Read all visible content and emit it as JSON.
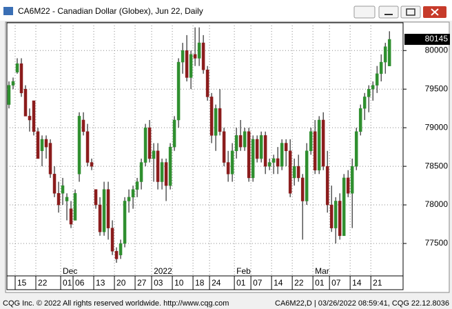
{
  "chart_data": {
    "type": "candlestick",
    "title": "CA6M22 - Canadian Dollar (Globex), Jun 22, Daily",
    "up_color": "#2f8f2f",
    "down_color": "#8b1c1c",
    "open": [
      79300,
      79550,
      79720,
      79830,
      79500,
      79150,
      79350,
      78950,
      78700,
      78850,
      78800,
      78400,
      78150,
      78150,
      78050,
      77950,
      77800,
      78400,
      79100,
      78950,
      78550,
      78200,
      78000,
      77650,
      78200,
      77700,
      77400,
      77350,
      77500,
      78050,
      78100,
      78200,
      78300,
      78550,
      79000,
      78600,
      78700,
      78300,
      78550,
      78250,
      78750,
      79100,
      79850,
      80000,
      79650,
      79950,
      79900,
      80100,
      79750,
      79400,
      78900,
      79250,
      78950,
      78550,
      78400,
      78700,
      78900,
      78750,
      78950,
      78350,
      78850,
      78600,
      78900,
      78500,
      78550,
      78600,
      78500,
      78800,
      78700,
      78350,
      78500,
      78350,
      78050,
      78700,
      78950,
      78450,
      79100,
      78500,
      78000,
      77700,
      78050,
      77600,
      78350,
      78150,
      78500,
      78950,
      79250,
      79400,
      79500,
      79550,
      79700,
      79850,
      79800
    ],
    "high": [
      79600,
      79650,
      79900,
      79900,
      79550,
      79250,
      79350,
      79000,
      78900,
      78900,
      78850,
      78500,
      78300,
      78350,
      78150,
      78050,
      78200,
      79200,
      79200,
      79050,
      78600,
      78200,
      78100,
      78300,
      78300,
      77800,
      77450,
      77550,
      78100,
      78200,
      78250,
      78350,
      78600,
      79050,
      79100,
      78800,
      78800,
      78600,
      78600,
      78800,
      79150,
      79900,
      80100,
      80200,
      80000,
      80300,
      80300,
      80200,
      79800,
      79450,
      79300,
      79500,
      79000,
      78700,
      78800,
      79000,
      79100,
      79000,
      79000,
      78900,
      78900,
      78950,
      78950,
      78600,
      78650,
      78750,
      78850,
      78850,
      78850,
      78600,
      78650,
      78400,
      78800,
      79000,
      79100,
      79150,
      79200,
      78700,
      78250,
      78100,
      78150,
      78400,
      78450,
      78600,
      79000,
      79300,
      79450,
      79550,
      79600,
      79800,
      79950,
      80100,
      80250
    ],
    "low": [
      79250,
      79500,
      79700,
      79400,
      79150,
      78950,
      78900,
      78600,
      78500,
      78600,
      78350,
      78100,
      77900,
      78000,
      77800,
      77700,
      77800,
      78300,
      78900,
      78500,
      78450,
      77950,
      77600,
      77600,
      77550,
      77350,
      77250,
      77300,
      77450,
      77900,
      77950,
      78100,
      78200,
      78500,
      78550,
      78300,
      78200,
      78200,
      78050,
      78200,
      78700,
      79000,
      79700,
      79600,
      79500,
      79800,
      79800,
      79700,
      79350,
      78800,
      78700,
      78900,
      78500,
      78300,
      78300,
      78600,
      78700,
      78700,
      78300,
      78300,
      78550,
      78550,
      78400,
      78450,
      78400,
      78400,
      78450,
      78500,
      78100,
      78250,
      78300,
      77550,
      78000,
      78650,
      78400,
      78400,
      78450,
      77900,
      77650,
      77500,
      77550,
      77600,
      78100,
      77700,
      78450,
      78900,
      79100,
      79200,
      79350,
      79450,
      79600,
      79700,
      79800
    ],
    "close": [
      79550,
      79600,
      79830,
      79450,
      79150,
      79100,
      78950,
      78600,
      78850,
      78750,
      78400,
      78150,
      78000,
      78250,
      78100,
      77750,
      78150,
      79150,
      78950,
      78550,
      78500,
      78000,
      77650,
      78200,
      77700,
      77400,
      77300,
      77500,
      78050,
      78100,
      78200,
      78300,
      78550,
      79000,
      78600,
      78700,
      78300,
      78550,
      78250,
      78750,
      79100,
      79850,
      80000,
      79650,
      79950,
      79900,
      80100,
      79750,
      79400,
      78900,
      79250,
      78950,
      78550,
      78400,
      78700,
      78900,
      78750,
      78950,
      78350,
      78850,
      78600,
      78900,
      78500,
      78550,
      78600,
      78500,
      78800,
      78700,
      78150,
      78500,
      78350,
      78050,
      78700,
      78950,
      78450,
      79100,
      78500,
      78000,
      77700,
      78050,
      77600,
      78350,
      78150,
      78500,
      78950,
      79250,
      79400,
      79500,
      79550,
      79700,
      79850,
      80050,
      80145
    ],
    "xlim": [
      -0.5,
      95.3
    ],
    "xticks": [
      {
        "value": 2,
        "label": "15"
      },
      {
        "value": 7,
        "label": "22"
      },
      {
        "value": 13,
        "label": "01"
      },
      {
        "value": 16,
        "label": "06"
      },
      {
        "value": 21,
        "label": "13"
      },
      {
        "value": 26,
        "label": "20"
      },
      {
        "value": 31,
        "label": "27"
      },
      {
        "value": 35,
        "label": "03"
      },
      {
        "value": 40,
        "label": "10"
      },
      {
        "value": 45,
        "label": "18"
      },
      {
        "value": 49,
        "label": "24"
      },
      {
        "value": 55,
        "label": "01"
      },
      {
        "value": 59,
        "label": "07"
      },
      {
        "value": 64,
        "label": "14"
      },
      {
        "value": 69,
        "label": "22"
      },
      {
        "value": 74,
        "label": "01"
      },
      {
        "value": 78,
        "label": "07"
      },
      {
        "value": 83,
        "label": "14"
      },
      {
        "value": 88,
        "label": "21"
      }
    ],
    "month_ticks": [
      {
        "value": 13,
        "label": "Dec"
      },
      {
        "value": 35,
        "label": "2022"
      },
      {
        "value": 55,
        "label": "Feb"
      },
      {
        "value": 74,
        "label": "Mar"
      }
    ],
    "ylim": [
      77080,
      80360
    ],
    "yticks": [
      77500,
      78000,
      78500,
      79000,
      79500,
      80000
    ],
    "grid": true
  },
  "footer": {
    "left": "CQG Inc. © 2022 All rights reserved worldwide. http://www.cqg.com",
    "right": "CA6M22,D | 03/26/2022 08:59:41, CQG 22.12.8036"
  }
}
